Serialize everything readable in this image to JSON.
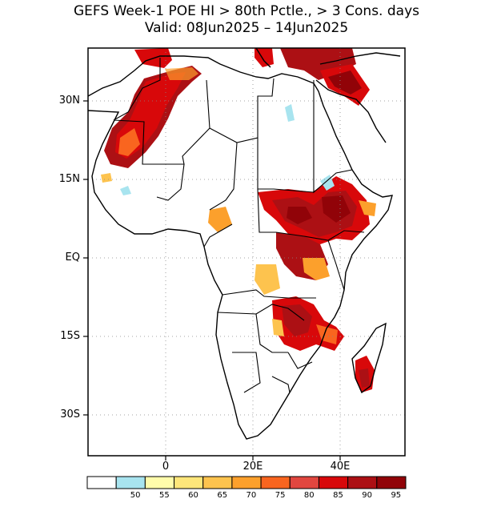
{
  "title": {
    "line1": "GEFS Week-1 POE HI > 80th Pctle., > 3 Cons. days",
    "line2": "Valid: 08Jun2025 – 14Jun2025"
  },
  "axes": {
    "lat_labels": [
      "30N",
      "15N",
      "EQ",
      "15S",
      "30S"
    ],
    "lon_labels": [
      "0",
      "20E",
      "40E"
    ]
  },
  "colorbar": {
    "labels": [
      "50",
      "55",
      "60",
      "65",
      "70",
      "75",
      "80",
      "85",
      "90",
      "95"
    ],
    "colors": [
      "#ffffff",
      "#a8e4ef",
      "#fffcab",
      "#fee67a",
      "#fdc34e",
      "#fca02c",
      "#f9651f",
      "#e1463f",
      "#d8080a",
      "#ac1014",
      "#910308"
    ]
  },
  "map": {
    "region": "Africa",
    "hotspots": [
      "NW Africa (Morocco/Algeria/Mauritania)",
      "Mediterranean coast",
      "Sudan / South Sudan / Ethiopia",
      "Central Africa (DRC/Uganda)",
      "Zambia / Malawi / Mozambique",
      "Southern Madagascar"
    ]
  }
}
